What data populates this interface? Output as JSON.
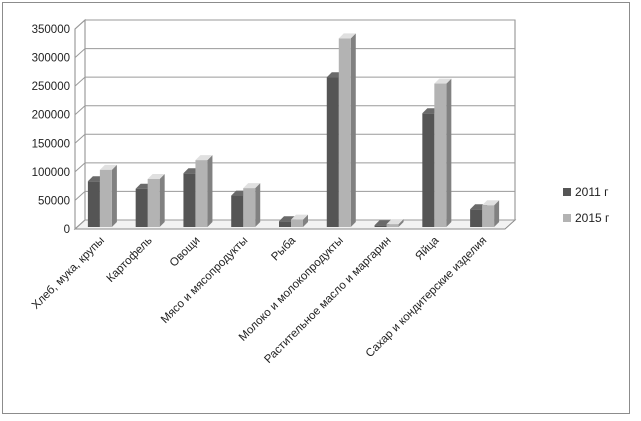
{
  "chart_data": {
    "type": "bar",
    "style": "3d-clustered-column",
    "categories": [
      "Хлеб, мука, крупы",
      "Картофель",
      "Овощи",
      "Мясо и мясопродукты",
      "Рыба",
      "Молоко и молокопродукты",
      "Растительное масло и маргарин",
      "Яйца",
      "Сахар и кондитерские изделия"
    ],
    "series": [
      {
        "name": "2011 г",
        "color": "#555555",
        "values": [
          80000,
          67000,
          94000,
          55000,
          10000,
          262000,
          3000,
          199000,
          31000
        ]
      },
      {
        "name": "2015 г",
        "color": "#b3b3b3",
        "values": [
          100000,
          84000,
          117000,
          68000,
          13000,
          330000,
          5000,
          251000,
          38000
        ]
      }
    ],
    "title": "",
    "xlabel": "",
    "ylabel": "",
    "ylim": [
      0,
      350000
    ],
    "yticks": [
      "0",
      "50000",
      "100000",
      "150000",
      "200000",
      "250000",
      "300000",
      "350000"
    ],
    "grid": true,
    "legend": "right"
  }
}
